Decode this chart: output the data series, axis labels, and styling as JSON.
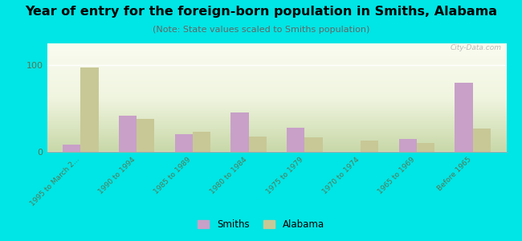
{
  "title": "Year of entry for the foreign-born population in Smiths, Alabama",
  "subtitle": "(Note: State values scaled to Smiths population)",
  "categories": [
    "1995 to March 2...",
    "1990 to 1994",
    "1985 to 1989",
    "1980 to 1984",
    "1975 to 1979",
    "1970 to 1974",
    "1965 to 1969",
    "Before 1965"
  ],
  "smiths_values": [
    8,
    42,
    20,
    45,
    28,
    0,
    15,
    80
  ],
  "alabama_values": [
    97,
    38,
    23,
    18,
    17,
    13,
    10,
    27
  ],
  "smiths_color": "#c8a0c8",
  "alabama_color": "#c8c896",
  "background_color": "#00e5e5",
  "plot_bg_color": "#eef2e0",
  "ylim": [
    0,
    125
  ],
  "yticks": [
    0,
    100
  ],
  "watermark": "City-Data.com",
  "title_fontsize": 11.5,
  "subtitle_fontsize": 8,
  "tick_color": "#557755",
  "tick_fontsize": 6.5
}
